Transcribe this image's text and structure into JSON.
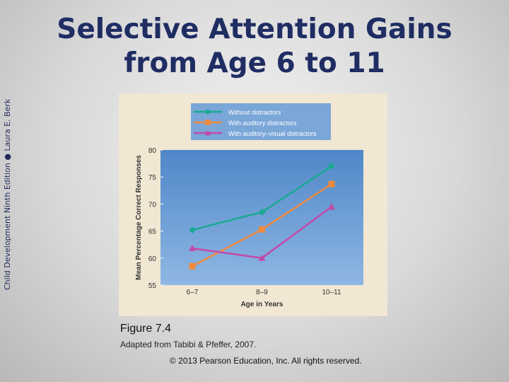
{
  "side_label": "Child Development Ninth Edition ● Laura E. Berk",
  "title_lines": [
    "Selective Attention Gains",
    "from Age 6 to 11"
  ],
  "caption": "Figure 7.4",
  "source": "Adapted from Tabibi & Pfeffer, 2007.",
  "copyright": "© 2013 Pearson Education, Inc. All rights reserved.",
  "chart_data": {
    "type": "line",
    "xlabel": "Age in Years",
    "ylabel": "Mean Percentage Correct Responses",
    "categories": [
      "6–7",
      "8–9",
      "10–11"
    ],
    "ylim": [
      55,
      80
    ],
    "yticks": [
      "55",
      "60",
      "65",
      "70",
      "75",
      "80"
    ],
    "legend_position": "top",
    "series": [
      {
        "name": "Without distractors",
        "marker": "diamond",
        "color": "#1aa98f",
        "values": [
          65.2,
          68.5,
          77
        ]
      },
      {
        "name": "With auditory distractors",
        "marker": "square",
        "color": "#f08a3c",
        "values": [
          58.5,
          65.3,
          73.7
        ]
      },
      {
        "name": "With auditory–visual distractors",
        "marker": "triangle",
        "color": "#c24aa8",
        "values": [
          61.8,
          60,
          69.5
        ]
      }
    ]
  }
}
